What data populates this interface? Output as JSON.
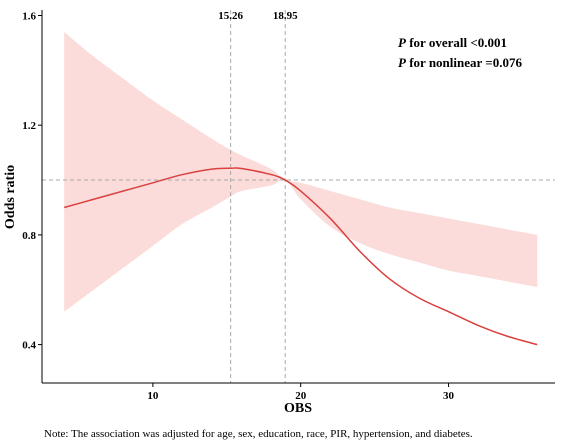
{
  "chart_data": {
    "type": "line",
    "xlabel": "OBS",
    "ylabel": "Odds ratio",
    "xlim": [
      2.5,
      37.2
    ],
    "ylim": [
      0.26,
      1.62
    ],
    "x_ticks": [
      10,
      20,
      30
    ],
    "y_ticks": [
      0.4,
      0.8,
      1.2,
      1.6
    ],
    "y_tick_labels": [
      "0.4",
      "0.8",
      "1.2",
      "1.6"
    ],
    "reference_line_y": 1.0,
    "knots": [
      {
        "x": 15.26,
        "label": "15.26"
      },
      {
        "x": 18.95,
        "label": "18.95"
      }
    ],
    "colors": {
      "line": "#d9413f",
      "band": "#fbdcdb",
      "reference": "#aaaaaa"
    },
    "series": [
      {
        "x": [
          4,
          6,
          8,
          10,
          12,
          14,
          15.26,
          16,
          18,
          18.95,
          20,
          22,
          24,
          26,
          28,
          30,
          32,
          34,
          36
        ],
        "y": [
          0.9,
          0.93,
          0.96,
          0.99,
          1.02,
          1.04,
          1.043,
          1.042,
          1.02,
          1.0,
          0.96,
          0.86,
          0.74,
          0.64,
          0.57,
          0.52,
          0.47,
          0.43,
          0.4
        ],
        "lower": [
          0.52,
          0.6,
          0.68,
          0.76,
          0.84,
          0.9,
          0.94,
          0.96,
          0.98,
          1.0,
          0.93,
          0.83,
          0.77,
          0.73,
          0.7,
          0.67,
          0.65,
          0.63,
          0.61
        ],
        "upper": [
          1.54,
          1.45,
          1.37,
          1.29,
          1.22,
          1.15,
          1.11,
          1.09,
          1.04,
          1.0,
          0.99,
          0.96,
          0.93,
          0.9,
          0.88,
          0.86,
          0.84,
          0.82,
          0.8
        ]
      }
    ],
    "annotations": [
      {
        "italic": "P",
        "text": " for overall <0.001"
      },
      {
        "italic": "P",
        "text": " for nonlinear =0.076"
      }
    ]
  },
  "note": "Note: The association was adjusted for age, sex, education, race, PIR, hypertension, and diabetes."
}
